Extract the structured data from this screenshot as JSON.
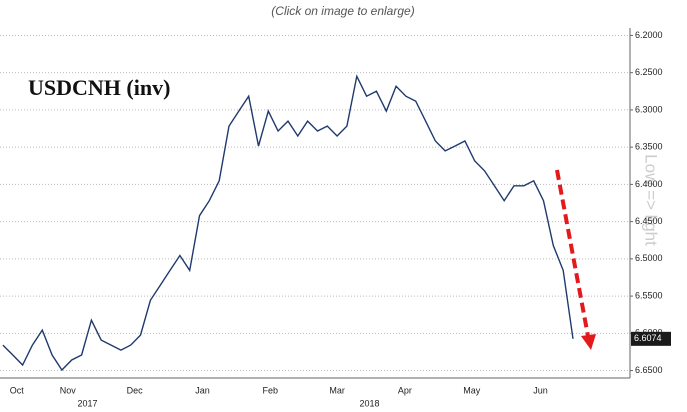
{
  "chart_data": {
    "type": "line",
    "caption": "(Click on image to enlarge)",
    "title": "USDCNH (inv)",
    "annotation": "Low => light",
    "x": [
      0,
      1,
      2,
      3,
      4,
      5,
      6,
      7,
      8,
      9,
      10,
      11,
      12,
      13,
      14,
      15,
      16,
      17,
      18,
      19,
      20,
      21,
      22,
      23,
      24,
      25,
      26,
      27,
      28,
      29,
      30,
      31,
      32,
      33,
      34,
      35,
      36,
      37,
      38,
      39,
      40,
      41,
      42,
      43,
      44,
      45,
      46,
      47,
      48,
      49,
      50,
      51,
      52,
      53,
      54,
      55,
      56,
      57,
      58
    ],
    "series": [
      {
        "name": "USDCNH",
        "color": "#1f3a6e",
        "values": [
          6.6158,
          6.6291,
          6.6425,
          6.6158,
          6.5957,
          6.6291,
          6.6492,
          6.6358,
          6.6291,
          6.5824,
          6.6091,
          6.6158,
          6.6225,
          6.6158,
          6.6024,
          6.5556,
          6.5356,
          6.5155,
          6.4955,
          6.5155,
          6.442,
          6.4219,
          6.3952,
          6.3217,
          6.3016,
          6.2816,
          6.3484,
          6.3016,
          6.3283,
          6.315,
          6.335,
          6.315,
          6.3283,
          6.3217,
          6.335,
          6.3217,
          6.2548,
          6.2816,
          6.2749,
          6.3016,
          6.2682,
          6.2816,
          6.2882,
          6.315,
          6.3417,
          6.3551,
          6.3484,
          6.3417,
          6.3684,
          6.3818,
          6.4019,
          6.4219,
          6.4019,
          6.4019,
          6.3952,
          6.4219,
          6.4821,
          6.5155,
          6.6074
        ]
      }
    ],
    "last_value": 6.6074,
    "xlim": [
      -0.3,
      63.8
    ],
    "xticks": [
      {
        "value": 1.4,
        "label": "Oct"
      },
      {
        "value": 6.6,
        "label": "Nov"
      },
      {
        "value": 13.4,
        "label": "Dec"
      },
      {
        "value": 20.3,
        "label": "Jan"
      },
      {
        "value": 27.2,
        "label": "Feb"
      },
      {
        "value": 34,
        "label": "Mar"
      },
      {
        "value": 40.9,
        "label": "Apr"
      },
      {
        "value": 47.7,
        "label": "May"
      },
      {
        "value": 54.7,
        "label": "Jun"
      }
    ],
    "year_ticks": [
      {
        "value": 8.6,
        "label": "2017"
      },
      {
        "value": 37.3,
        "label": "2018"
      }
    ],
    "ylim": [
      6.19,
      6.66
    ],
    "inverted": true,
    "yticks": [
      {
        "value": 6.2,
        "label": "6.2000"
      },
      {
        "value": 6.25,
        "label": "6.2500"
      },
      {
        "value": 6.3,
        "label": "6.3000"
      },
      {
        "value": 6.35,
        "label": "6.3500"
      },
      {
        "value": 6.4,
        "label": "6.4000"
      },
      {
        "value": 6.45,
        "label": "6.4500"
      },
      {
        "value": 6.5,
        "label": "6.5000"
      },
      {
        "value": 6.55,
        "label": "6.5500"
      },
      {
        "value": 6.6,
        "label": "6.6000"
      },
      {
        "value": 6.65,
        "label": "6.6500"
      }
    ],
    "grid": true
  }
}
